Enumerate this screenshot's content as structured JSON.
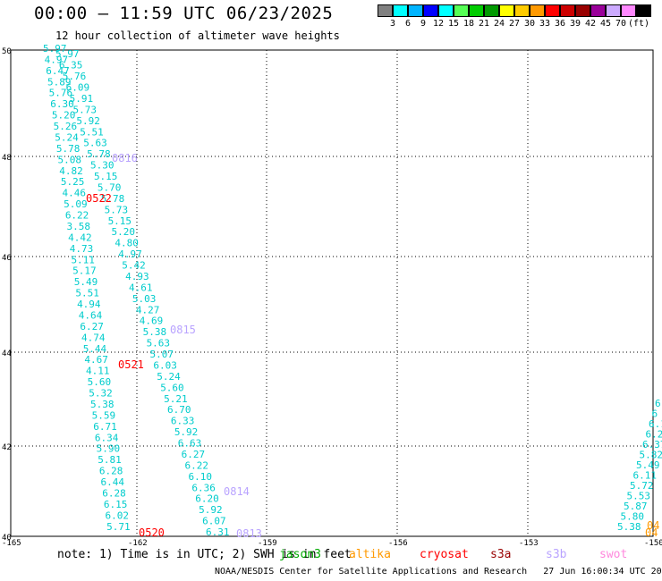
{
  "title": "00:00 — 11:59 UTC 06/23/2025",
  "subtitle": "12 hour collection of altimeter wave heights",
  "legend": {
    "unit": "(ft)",
    "colors": [
      "#808080",
      "#00ffff",
      "#00b4ff",
      "#0000ff",
      "#00ffff",
      "#55ff55",
      "#00cc00",
      "#009900",
      "#ffff00",
      "#ffcc00",
      "#ff9900",
      "#ff0000",
      "#cc0000",
      "#990000",
      "#990099",
      "#ccaaff",
      "#ff88ff",
      "#000000"
    ],
    "labels": [
      "3",
      "6",
      "9",
      "12",
      "15",
      "18",
      "21",
      "24",
      "27",
      "30",
      "33",
      "36",
      "39",
      "42",
      "45",
      "70"
    ]
  },
  "axes": {
    "lat_labels": [
      "50",
      "48",
      "46",
      "44",
      "42",
      "40"
    ],
    "lon_labels": [
      "-165",
      "-162",
      "-159",
      "-156",
      "-153",
      "-150"
    ]
  },
  "tracks": {
    "track1_values": [
      "5.97",
      "5.97",
      "4.97",
      "6.35",
      "6.47",
      "5.76",
      "5.89",
      "6.09",
      "5.76",
      "5.91",
      "6.30",
      "5.73",
      "5.20",
      "5.92",
      "5.26",
      "5.51",
      "5.24",
      "5.63",
      "5.78",
      "5.78",
      "5.08",
      "5.30",
      "4.82",
      "5.15",
      "5.25",
      "5.70",
      "4.46",
      "5.78",
      "5.09",
      "5.73",
      "6.22",
      "5.15",
      "3.58",
      "5.20",
      "4.42",
      "4.80",
      "4.73",
      "4.97",
      "5.11",
      "5.42",
      "5.17",
      "4.93",
      "5.49",
      "4.61",
      "5.51",
      "5.03",
      "4.94",
      "4.27",
      "4.64",
      "4.69",
      "6.27",
      "5.38",
      "4.74",
      "5.63",
      "5.44",
      "5.07",
      "4.67",
      "6.03",
      "4.11",
      "5.24",
      "5.60",
      "5.60",
      "5.32",
      "5.21",
      "5.38",
      "6.70",
      "5.59",
      "6.33",
      "6.71",
      "5.92",
      "6.34",
      "6.63",
      "5.90",
      "6.27",
      "5.81",
      "6.22",
      "6.28",
      "6.10",
      "6.44",
      "6.36",
      "6.28",
      "6.20",
      "6.15",
      "5.92",
      "6.02",
      "6.07",
      "5.71",
      "6.31"
    ],
    "track2_values": [
      "6",
      "6",
      "6.1",
      "6.2",
      "6.37",
      "5.82",
      "5.49",
      "6.11",
      "5.72",
      "5.53",
      "5.87",
      "5.80",
      "5.38"
    ],
    "time_labels": [
      {
        "text": "0816",
        "color": "#b9a3ff"
      },
      {
        "text": "0522",
        "color": "#ff0000"
      },
      {
        "text": "0815",
        "color": "#b9a3ff"
      },
      {
        "text": "0521",
        "color": "#ff0000"
      },
      {
        "text": "0814",
        "color": "#b9a3ff"
      },
      {
        "text": "0813",
        "color": "#b9a3ff"
      },
      {
        "text": "0520",
        "color": "#ff0000"
      },
      {
        "text": "04",
        "color": "#ff9900"
      },
      {
        "text": "04",
        "color": "#ff9900"
      }
    ]
  },
  "footer": {
    "note": "note: 1) Time is in UTC; 2) SWH is in feet",
    "credit": "NOAA/NESDIS Center for Satellite Applications and Research   27 Jun 16:00:34 UTC 2025",
    "missions": [
      {
        "name": "jason3",
        "color": "#00aa00"
      },
      {
        "name": "altika",
        "color": "#ff9900"
      },
      {
        "name": "cryosat",
        "color": "#ff0000"
      },
      {
        "name": "s3a",
        "color": "#990000"
      },
      {
        "name": "s3b",
        "color": "#b9a3ff"
      },
      {
        "name": "swot",
        "color": "#ff88dd"
      }
    ]
  }
}
